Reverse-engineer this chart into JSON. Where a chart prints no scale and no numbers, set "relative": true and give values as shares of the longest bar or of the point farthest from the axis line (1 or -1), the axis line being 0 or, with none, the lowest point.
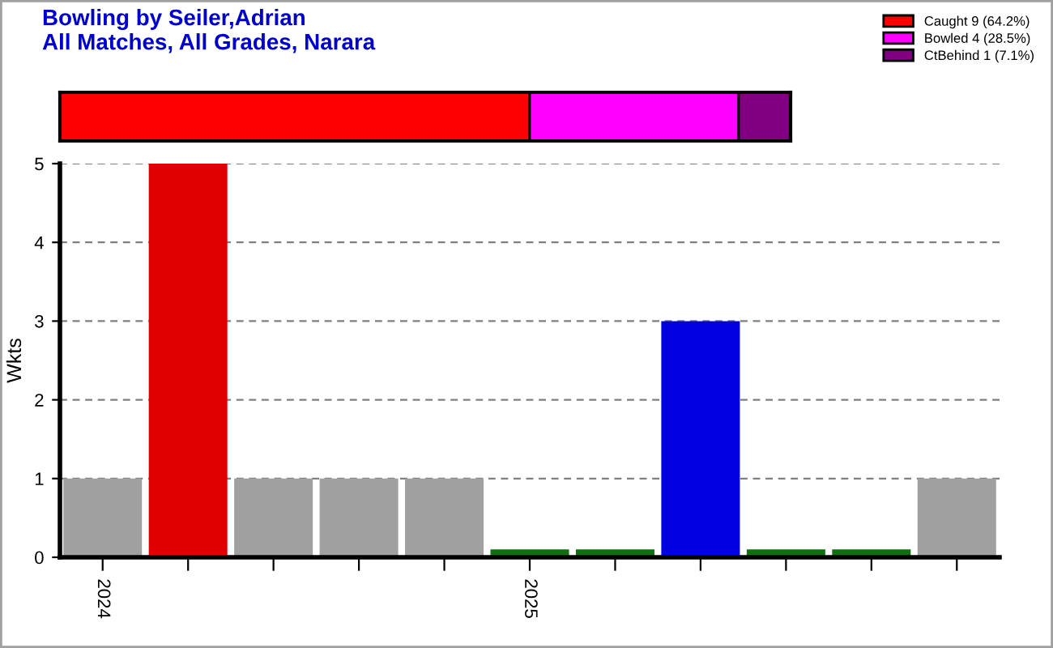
{
  "chart_data": [
    {
      "type": "bar",
      "orientation": "horizontal",
      "stacked": true,
      "title": "Bowling by Seiler,Adrian",
      "subtitle": "All Matches, All Grades, Narara",
      "categories": [
        null
      ],
      "legend": "top right",
      "relative": true,
      "series": [
        {
          "name": "Caught 9 (64.2%)",
          "color": "#ff0000",
          "values": [
            0.643
          ]
        },
        {
          "name": "Bowled 4 (28.5%)",
          "color": "#ff00ff",
          "values": [
            0.286
          ]
        },
        {
          "name": "CtBehind 1 (7.1%)",
          "color": "#800080",
          "values": [
            0.071
          ]
        }
      ]
    },
    {
      "type": "bar",
      "ylabel": "Wkts",
      "categories": [
        "2024",
        null,
        null,
        null,
        null,
        "2025",
        null,
        null,
        null,
        null,
        null
      ],
      "values": [
        1,
        5,
        1,
        1,
        1,
        0.1,
        0.1,
        3,
        0.1,
        0.1,
        1
      ],
      "colors": [
        "#a0a0a0",
        "#e00000",
        "#a0a0a0",
        "#a0a0a0",
        "#a0a0a0",
        "#107010",
        "#107010",
        "#0000e0",
        "#107010",
        "#107010",
        "#a0a0a0"
      ],
      "ylim": [
        0,
        5
      ],
      "yticks": [
        0,
        1,
        2,
        3,
        4,
        5
      ],
      "grid": "y"
    }
  ]
}
